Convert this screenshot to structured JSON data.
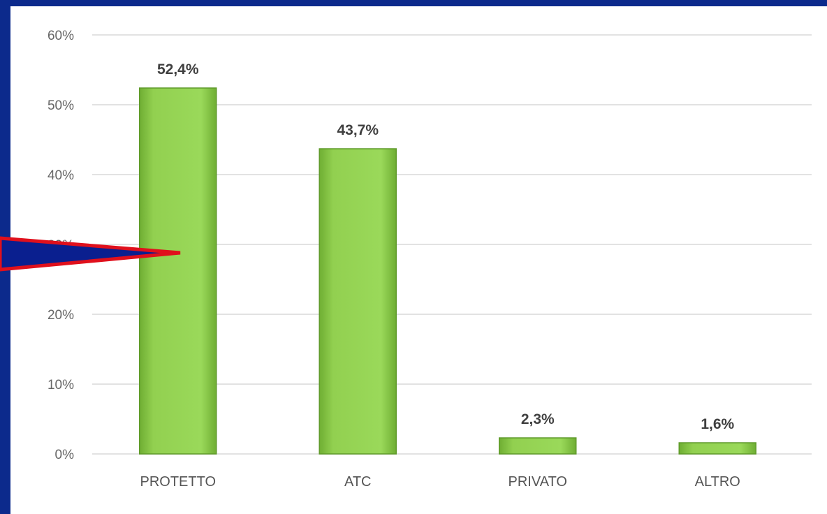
{
  "chart_data": {
    "type": "bar",
    "title": "",
    "xlabel": "",
    "ylabel": "",
    "categories": [
      "PROTETTO",
      "ATC",
      "PRIVATO",
      "ALTRO"
    ],
    "values": [
      52.4,
      43.7,
      2.3,
      1.6
    ],
    "data_labels": [
      "52,4%",
      "43,7%",
      "2,3%",
      "1,6%"
    ],
    "yticks": [
      "0%",
      "10%",
      "20%",
      "30%",
      "40%",
      "50%",
      "60%"
    ],
    "ylim": [
      0,
      60
    ],
    "grid": true,
    "legend": "none"
  },
  "colors": {
    "bar_fill": "#92d050",
    "bar_edge": "#5f9a2a",
    "gridline": "#d9d9d9",
    "slide_background": "#0c2a8c",
    "arrow_fill": "#0a1f8f",
    "arrow_outline": "#e0101c"
  },
  "annotation": {
    "shape": "pointer-arrow",
    "points_to": "PROTETTO"
  }
}
